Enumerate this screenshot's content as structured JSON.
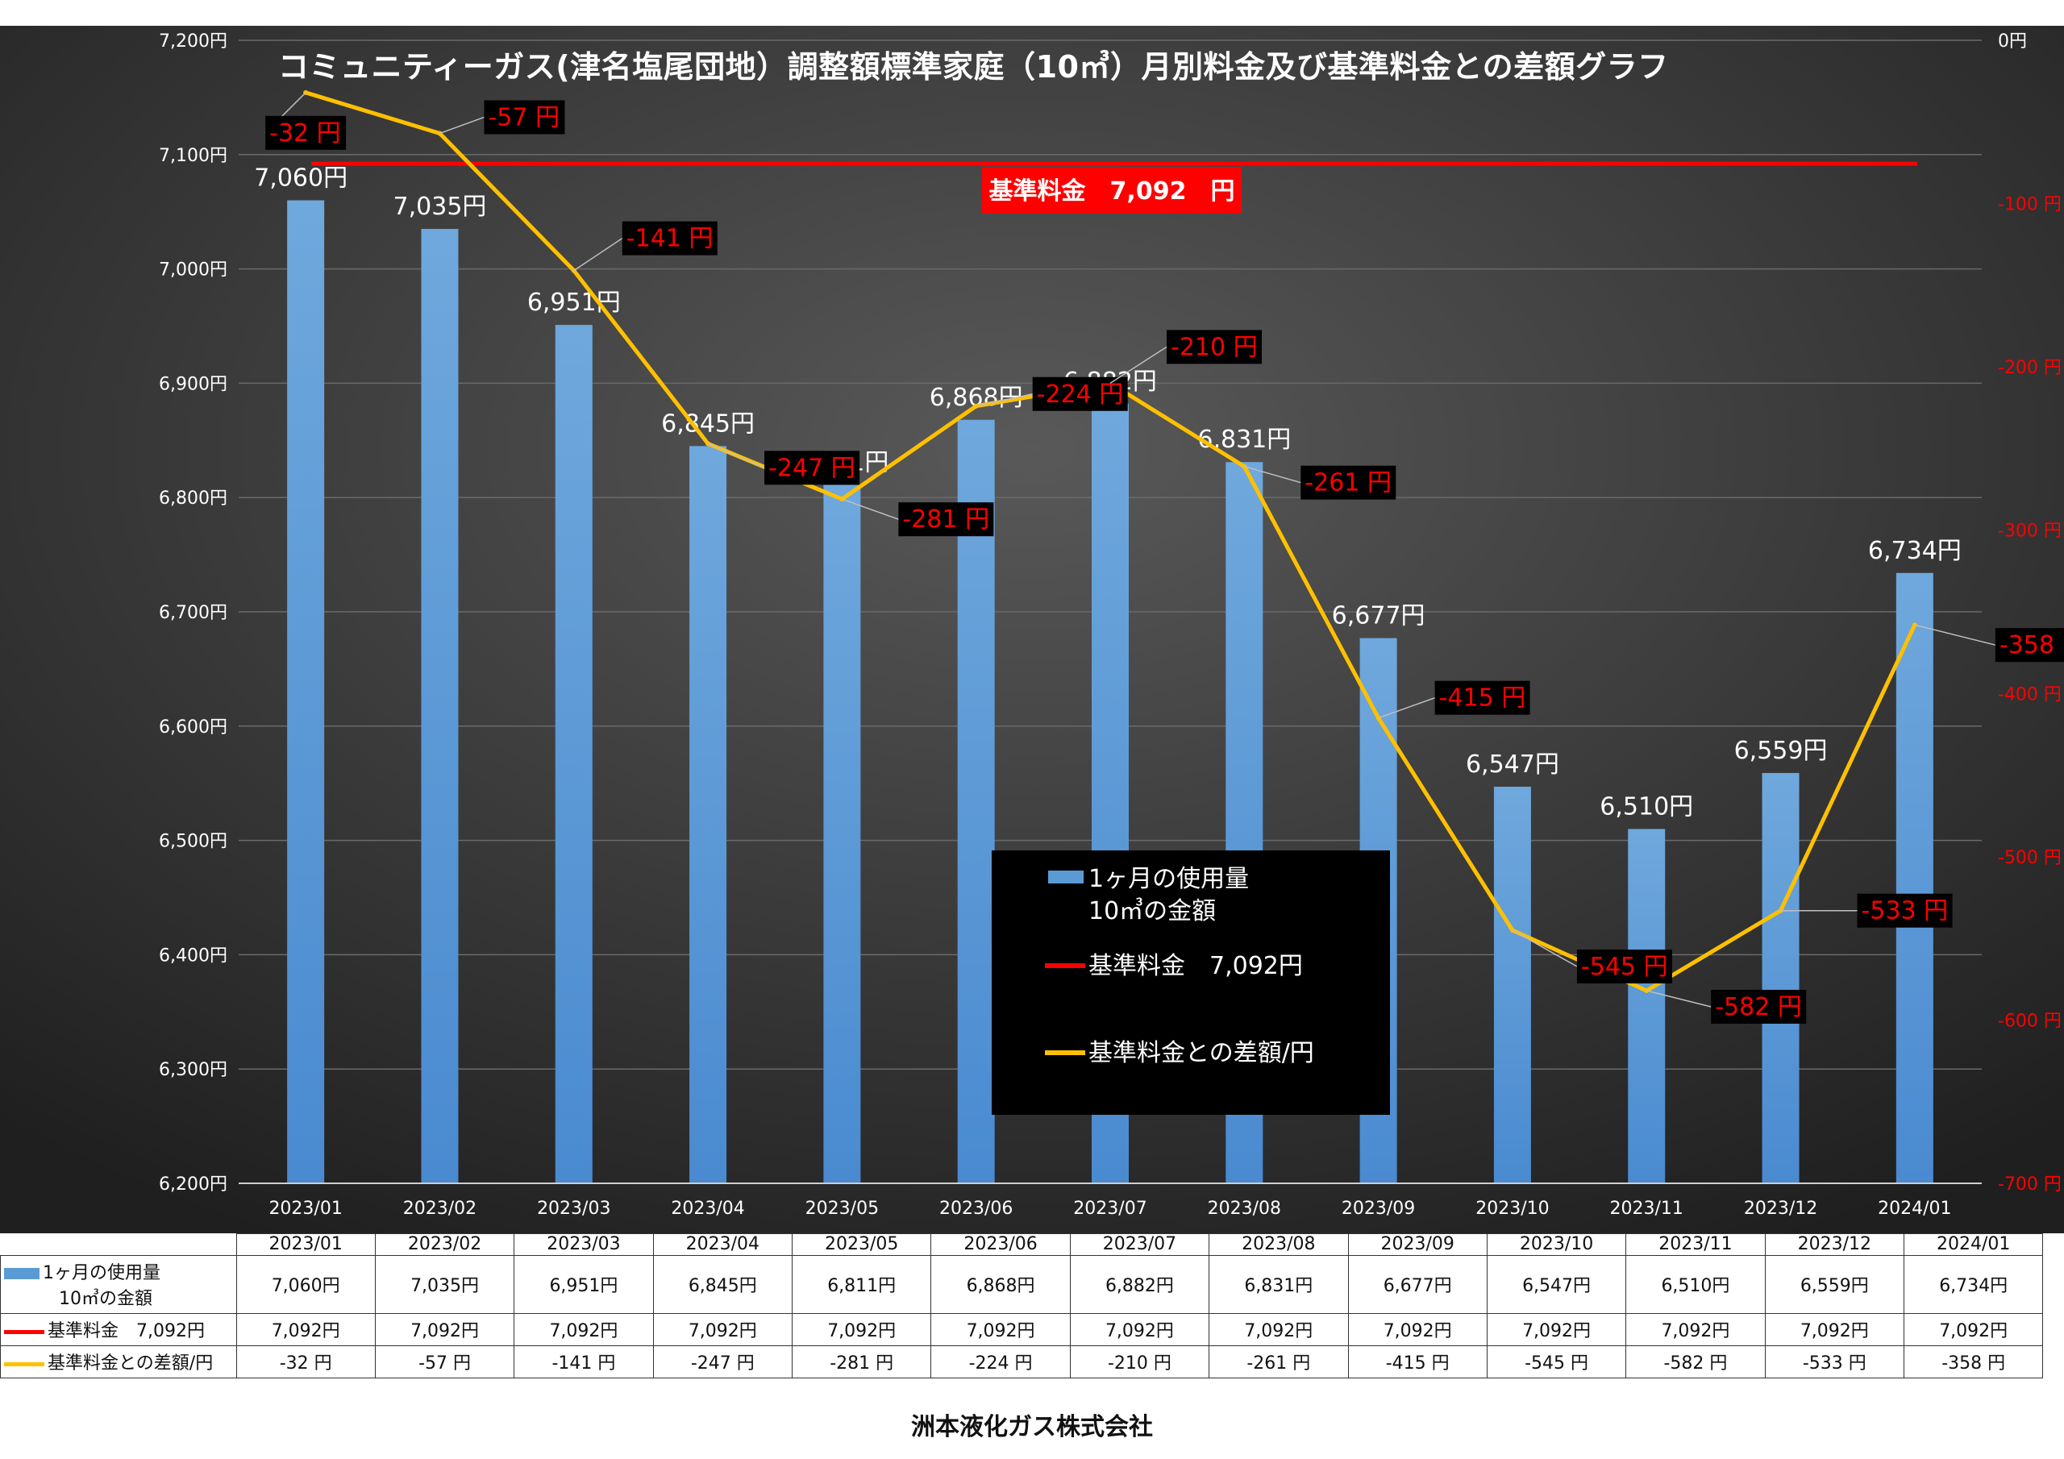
{
  "chart_data": {
    "type": "bar",
    "title": "コミュニティーガス(津名塩尾団地）調整額標準家庭（10㎥）月別料金及び基準料金との差額グラフ",
    "categories": [
      "2023/01",
      "2023/02",
      "2023/03",
      "2023/04",
      "2023/05",
      "2023/06",
      "2023/07",
      "2023/08",
      "2023/09",
      "2023/10",
      "2023/11",
      "2023/12",
      "2024/01"
    ],
    "series": [
      {
        "name": "1ヶ月の使用量\n10㎥の金額",
        "name_line1": "1ヶ月の使用量",
        "name_line2": "10㎥の金額",
        "kind": "bar",
        "axis": "left",
        "values": [
          7060,
          7035,
          6951,
          6845,
          6811,
          6868,
          6882,
          6831,
          6677,
          6547,
          6510,
          6559,
          6734
        ],
        "labels": [
          "7,060円",
          "7,035円",
          "6,951円",
          "6,845円",
          "6,811円",
          "6,868円",
          "6,882円",
          "6,831円",
          "6,677円",
          "6,547円",
          "6,510円",
          "6,559円",
          "6,734円"
        ]
      },
      {
        "name": "基準料金　7,092円",
        "kind": "line",
        "axis": "left",
        "values": [
          7092,
          7092,
          7092,
          7092,
          7092,
          7092,
          7092,
          7092,
          7092,
          7092,
          7092,
          7092,
          7092
        ],
        "labels": [
          "7,092円",
          "7,092円",
          "7,092円",
          "7,092円",
          "7,092円",
          "7,092円",
          "7,092円",
          "7,092円",
          "7,092円",
          "7,092円",
          "7,092円",
          "7,092円",
          "7,092円"
        ]
      },
      {
        "name": "基準料金との差額/円",
        "kind": "line",
        "axis": "right",
        "values": [
          -32,
          -57,
          -141,
          -247,
          -281,
          -224,
          -210,
          -261,
          -415,
          -545,
          -582,
          -533,
          -358
        ],
        "labels": [
          "-32 円",
          "-57 円",
          "-141 円",
          "-247 円",
          "-281 円",
          "-224 円",
          "-210 円",
          "-261 円",
          "-415 円",
          "-545 円",
          "-582 円",
          "-533 円",
          "-358 円"
        ]
      }
    ],
    "left_axis": {
      "ylim": [
        6200,
        7200
      ],
      "ticks": [
        "6,200円",
        "6,300円",
        "6,400円",
        "6,500円",
        "6,600円",
        "6,700円",
        "6,800円",
        "6,900円",
        "7,000円",
        "7,100円",
        "7,200円"
      ]
    },
    "right_axis": {
      "ylim": [
        -700,
        0
      ],
      "ticks": [
        "-700 円",
        "-600 円",
        "-500 円",
        "-400 円",
        "-300 円",
        "-200 円",
        "-100 円",
        "0円"
      ]
    },
    "base_annotation": "基準料金　7,092　円",
    "legend": {
      "placement": "center-bottom",
      "entries": [
        "1ヶ月の使用量",
        "10㎥の金額",
        "基準料金　7,092円",
        "基準料金との差額/円"
      ]
    },
    "grid": true,
    "colors": {
      "bar": "#5b9bd5",
      "base_line": "#ff0000",
      "diff_line": "#ffc000",
      "background": "#333333",
      "diff_label": "#ff0000"
    }
  },
  "table": {
    "row_heads": [
      "1ヶ月の使用量",
      "10㎥の金額",
      "基準料金　7,092円",
      "基準料金との差額/円"
    ]
  },
  "footer": "洲本液化ガス株式会社"
}
